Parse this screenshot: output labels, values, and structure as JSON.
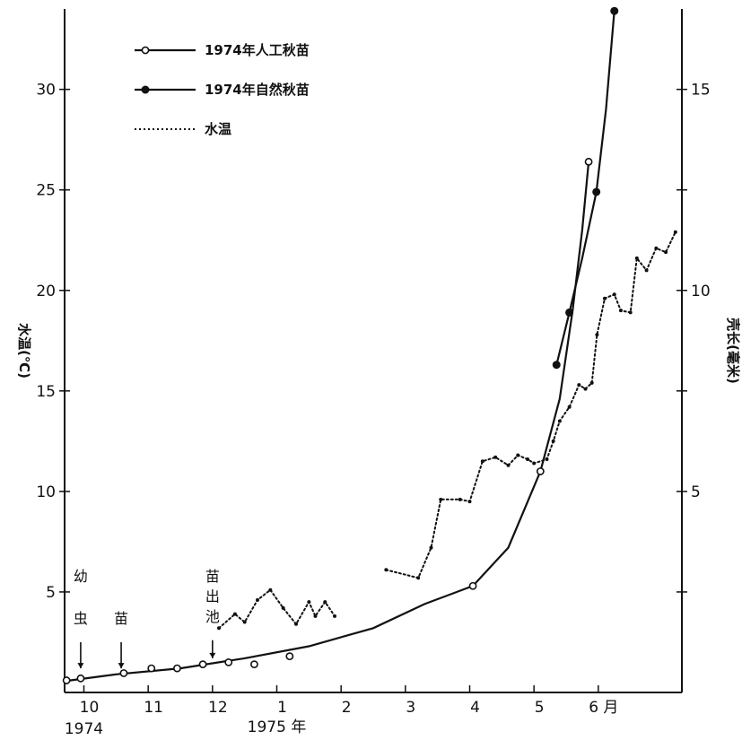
{
  "chart_data": {
    "type": "line",
    "y_left": {
      "label": "水温(℃)",
      "ylim": [
        0,
        34
      ],
      "ticks": [
        5,
        10,
        15,
        20,
        25,
        30
      ],
      "tick_labels": [
        "5",
        "10",
        "15",
        "20",
        "25",
        "30"
      ]
    },
    "y_right": {
      "label": "壳长(毫米)",
      "ylim": [
        0,
        17
      ],
      "ticks": [
        2.5,
        5,
        7.5,
        10,
        12.5,
        15
      ],
      "tick_labels": [
        "",
        "5",
        "",
        "10",
        "",
        "15"
      ]
    },
    "x_axis": {
      "ticks": [
        {
          "x": 10,
          "label": "10"
        },
        {
          "x": 11,
          "label": "11"
        },
        {
          "x": 12,
          "label": "12"
        },
        {
          "x": 13,
          "label": "1"
        },
        {
          "x": 14,
          "label": "2"
        },
        {
          "x": 15,
          "label": "3"
        },
        {
          "x": 16,
          "label": "4"
        },
        {
          "x": 17,
          "label": "5"
        },
        {
          "x": 18,
          "label": "6"
        }
      ],
      "month_suffix": "月",
      "year_1974": "1974",
      "year_1975": "1975 年",
      "xlim": [
        9.7,
        19.3
      ]
    },
    "annotations": [
      {
        "text": "幼",
        "x": 9.95,
        "y": 5.8
      },
      {
        "text": "虫",
        "x": 9.95,
        "y": 3.7
      },
      {
        "text": "苗",
        "x": 10.58,
        "y": 3.7
      },
      {
        "text": "苗",
        "x": 12.0,
        "y": 5.8
      },
      {
        "text": "出",
        "x": 12.0,
        "y": 4.8
      },
      {
        "text": "池",
        "x": 12.0,
        "y": 3.8
      }
    ],
    "arrows": [
      {
        "x": 9.95,
        "y_from": 2.5,
        "y_to": 1.2
      },
      {
        "x": 10.58,
        "y_from": 2.5,
        "y_to": 1.2
      },
      {
        "x": 12.0,
        "y_from": 2.6,
        "y_to": 1.7
      }
    ],
    "series": [
      {
        "name": "1974年人工秋苗",
        "axis": "right",
        "style": "solid-open-circle",
        "color": "#111111",
        "points": [
          [
            9.73,
            0.3
          ],
          [
            9.95,
            0.35
          ],
          [
            10.62,
            0.48
          ],
          [
            11.05,
            0.6
          ],
          [
            11.45,
            0.6
          ],
          [
            11.85,
            0.7
          ],
          [
            12.25,
            0.75
          ],
          [
            12.65,
            0.7
          ],
          [
            13.2,
            0.9
          ],
          [
            16.05,
            2.65
          ],
          [
            17.1,
            5.5
          ],
          [
            17.85,
            13.2
          ]
        ],
        "curve": [
          [
            9.7,
            0.28
          ],
          [
            10.5,
            0.45
          ],
          [
            11.5,
            0.6
          ],
          [
            12.5,
            0.85
          ],
          [
            13.5,
            1.15
          ],
          [
            14.5,
            1.6
          ],
          [
            15.3,
            2.2
          ],
          [
            16.05,
            2.65
          ],
          [
            16.6,
            3.6
          ],
          [
            17.1,
            5.5
          ],
          [
            17.4,
            7.3
          ],
          [
            17.6,
            9.5
          ],
          [
            17.75,
            11.5
          ],
          [
            17.85,
            13.2
          ]
        ]
      },
      {
        "name": "1974年自然秋苗",
        "axis": "right",
        "style": "solid-filled-circle",
        "color": "#111111",
        "points": [
          [
            17.35,
            8.15
          ],
          [
            17.55,
            9.45
          ],
          [
            17.97,
            12.45
          ],
          [
            18.25,
            16.95
          ]
        ],
        "curve": [
          [
            17.35,
            8.15
          ],
          [
            17.55,
            9.45
          ],
          [
            17.75,
            10.8
          ],
          [
            17.97,
            12.45
          ],
          [
            18.12,
            14.5
          ],
          [
            18.25,
            16.95
          ]
        ]
      },
      {
        "name": "水温",
        "axis": "left",
        "style": "dotted",
        "color": "#111111",
        "segments": [
          [
            [
              12.1,
              3.2
            ],
            [
              12.35,
              3.9
            ],
            [
              12.5,
              3.5
            ],
            [
              12.7,
              4.6
            ],
            [
              12.9,
              5.1
            ],
            [
              13.1,
              4.2
            ],
            [
              13.3,
              3.4
            ],
            [
              13.5,
              4.5
            ],
            [
              13.6,
              3.8
            ],
            [
              13.75,
              4.5
            ],
            [
              13.9,
              3.8
            ]
          ],
          [
            [
              14.7,
              6.1
            ],
            [
              15.2,
              5.7
            ],
            [
              15.4,
              7.2
            ],
            [
              15.55,
              9.6
            ],
            [
              15.85,
              9.6
            ],
            [
              16.0,
              9.5
            ],
            [
              16.2,
              11.5
            ],
            [
              16.4,
              11.7
            ],
            [
              16.6,
              11.3
            ],
            [
              16.75,
              11.8
            ],
            [
              16.9,
              11.6
            ],
            [
              17.0,
              11.4
            ],
            [
              17.2,
              11.6
            ],
            [
              17.3,
              12.5
            ],
            [
              17.4,
              13.5
            ],
            [
              17.55,
              14.2
            ],
            [
              17.7,
              15.3
            ],
            [
              17.8,
              15.1
            ],
            [
              17.9,
              15.4
            ],
            [
              17.98,
              17.8
            ],
            [
              18.1,
              19.6
            ],
            [
              18.25,
              19.8
            ],
            [
              18.35,
              19.0
            ],
            [
              18.5,
              18.9
            ],
            [
              18.6,
              21.6
            ],
            [
              18.75,
              21.0
            ],
            [
              18.9,
              22.1
            ],
            [
              19.05,
              21.9
            ],
            [
              19.2,
              22.9
            ]
          ]
        ]
      }
    ],
    "legend": {
      "placement": "top-left",
      "entries": [
        {
          "label": "1974年人工秋苗",
          "style": "solid-open-circle"
        },
        {
          "label": "1974年自然秋苗",
          "style": "solid-filled-circle"
        },
        {
          "label": "水温",
          "style": "dotted"
        }
      ]
    }
  }
}
